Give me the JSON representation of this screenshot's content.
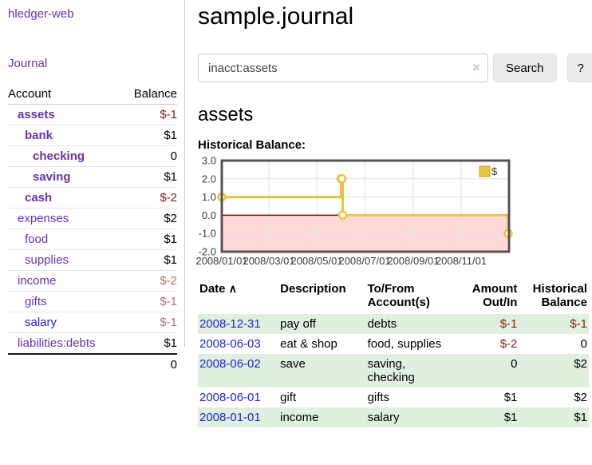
{
  "app": {
    "brand": "hledger-web"
  },
  "nav": {
    "journal": "Journal"
  },
  "sidebar": {
    "header": {
      "account": "Account",
      "balance": "Balance"
    },
    "accounts": [
      {
        "name": "assets",
        "balance": "$-1"
      },
      {
        "name": "bank",
        "balance": "$1"
      },
      {
        "name": "checking",
        "balance": "0"
      },
      {
        "name": "saving",
        "balance": "$1"
      },
      {
        "name": "cash",
        "balance": "$-2"
      },
      {
        "name": "expenses",
        "balance": "$2"
      },
      {
        "name": "food",
        "balance": "$1"
      },
      {
        "name": "supplies",
        "balance": "$1"
      },
      {
        "name": "income",
        "balance": "$-2"
      },
      {
        "name": "gifts",
        "balance": "$-1"
      },
      {
        "name": "salary",
        "balance": "$-1"
      },
      {
        "name": "liabilities:debts",
        "balance": "$1"
      }
    ],
    "total": "0"
  },
  "header": {
    "title": "sample.journal"
  },
  "search": {
    "value": "inacct:assets",
    "clear_icon": "×",
    "button": "Search",
    "help_button": "?"
  },
  "account_page": {
    "title": "assets",
    "chart_label": "Historical Balance:"
  },
  "chart_data": {
    "type": "line",
    "title": "Historical Balance:",
    "x_range": [
      "2008-01-01",
      "2009-01-01"
    ],
    "y_range": [
      -2,
      3
    ],
    "ylim": [
      -2,
      3
    ],
    "y_ticks": [
      3,
      2,
      1,
      0,
      -1,
      -2
    ],
    "x_ticks": [
      {
        "date": "2008-01-01",
        "label": "2008/01/01"
      },
      {
        "date": "2008-03-01",
        "label": "2008/03/01"
      },
      {
        "date": "2008-05-01",
        "label": "2008/05/01"
      },
      {
        "date": "2008-07-01",
        "label": "2008/07/01"
      },
      {
        "date": "2008-09-01",
        "label": "2008/09/01"
      },
      {
        "date": "2008-11-01",
        "label": "2008/11/01"
      }
    ],
    "series": [
      {
        "name": "$",
        "color": "#edc240",
        "step": true,
        "points": [
          [
            "2008-01-01",
            1
          ],
          [
            "2008-06-01",
            2
          ],
          [
            "2008-06-02",
            2
          ],
          [
            "2008-06-03",
            0
          ],
          [
            "2008-12-31",
            -1
          ]
        ]
      }
    ],
    "legend": {
      "label": "$",
      "position": "top-right",
      "swatch_color": "#edc240",
      "swatch_border": "#c9a227"
    },
    "grid": true,
    "grid_color": "#e2e2e2",
    "border_color": "#545454",
    "zero_line_color": "#8b0000",
    "negative_region_color": "#ffd9d9"
  },
  "register": {
    "sort_indicator": "∧",
    "columns": [
      {
        "label": "Date"
      },
      {
        "label": "Description"
      },
      {
        "label": "To/From Account(s)"
      },
      {
        "label": "Amount Out/In"
      },
      {
        "label": "Historical Balance"
      }
    ],
    "rows": [
      {
        "date": "2008-12-31",
        "description": "pay off",
        "accounts": "debts",
        "amount": "$-1",
        "balance": "$-1"
      },
      {
        "date": "2008-06-03",
        "description": "eat & shop",
        "accounts": "food, supplies",
        "amount": "$-2",
        "balance": "0"
      },
      {
        "date": "2008-06-02",
        "description": "save",
        "accounts": "saving, checking",
        "amount": "0",
        "balance": "$2"
      },
      {
        "date": "2008-06-01",
        "description": "gift",
        "accounts": "gifts",
        "amount": "$1",
        "balance": "$2"
      },
      {
        "date": "2008-01-01",
        "description": "income",
        "accounts": "salary",
        "amount": "$1",
        "balance": "$1"
      }
    ]
  }
}
